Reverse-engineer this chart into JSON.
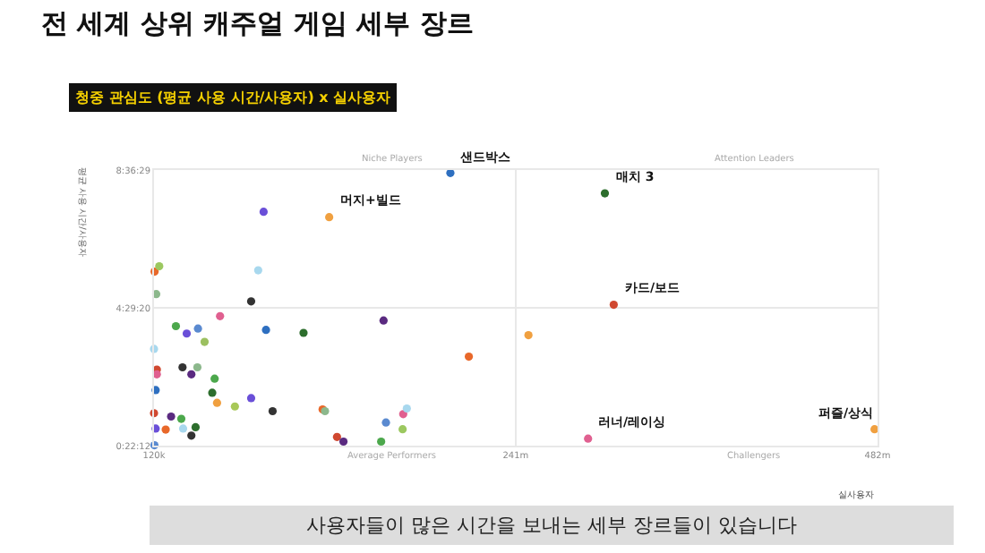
{
  "chart_data": {
    "type": "scatter",
    "title": "전 세계 상위 캐주얼 게임 세부 장르",
    "subtitle": "청중 관심도 (평균 사용 시간/사용자) x 실사용자",
    "xlabel": "실사용자",
    "ylabel": "평균 사용 시간/사용자",
    "xlim": [
      120000,
      482000000
    ],
    "xticks": [
      {
        "value": 120000,
        "label": "120k"
      },
      {
        "value": 241000000,
        "label": "241m"
      },
      {
        "value": 482000000,
        "label": "482m"
      }
    ],
    "ylim": [
      0.37,
      8.608
    ],
    "yticks": [
      {
        "value": 0.37,
        "label": "0:22:12"
      },
      {
        "value": 4.489,
        "label": "4:29:20"
      },
      {
        "value": 8.608,
        "label": "8:36:29"
      }
    ],
    "grid": true,
    "marker": "circle",
    "x": [
      197500000,
      73100000,
      116800000,
      500000,
      3600000,
      69500000,
      1600000,
      64800000,
      44100000,
      14700000,
      21900000,
      29400000,
      74700000,
      99700000,
      153000000,
      33800000,
      120000,
      19100000,
      29000000,
      2000000,
      2000000,
      25000000,
      40500000,
      1200000,
      38900000,
      42100000,
      64800000,
      54000000,
      79100000,
      112400000,
      114000000,
      120000,
      11500000,
      18300000,
      1200000,
      19500000,
      27800000,
      7900000,
      25000000,
      122000000,
      126300000,
      151400000,
      154600000,
      165700000,
      166100000,
      168500000,
      209800000,
      400000,
      249500000,
      300400000,
      306300000,
      289200000,
      480000000
    ],
    "values": [
      8.52,
      7.36,
      7.2,
      5.57,
      5.73,
      5.61,
      4.9,
      4.68,
      4.24,
      3.94,
      3.72,
      3.87,
      3.83,
      3.74,
      4.11,
      3.47,
      3.26,
      2.71,
      2.71,
      2.64,
      2.5,
      2.5,
      2.37,
      2.03,
      1.95,
      1.65,
      1.79,
      1.54,
      1.4,
      1.45,
      1.4,
      1.34,
      1.24,
      1.17,
      0.88,
      0.88,
      0.92,
      0.85,
      0.67,
      0.63,
      0.49,
      0.49,
      1.06,
      0.86,
      1.31,
      1.48,
      3.03,
      0.38,
      3.67,
      7.91,
      4.58,
      0.58,
      0.86
    ],
    "colors": [
      "#2e6fc0",
      "#6a4fd8",
      "#f0a040",
      "#e8682a",
      "#9cc860",
      "#a8d8ee",
      "#8cb88c",
      "#333333",
      "#e06090",
      "#4ca84c",
      "#6a4fd8",
      "#5a8ad0",
      "#2e6fc0",
      "#2d6e2d",
      "#5a2a80",
      "#9cc060",
      "#a8d8ee",
      "#333333",
      "#8cb88c",
      "#d04830",
      "#e06090",
      "#5a2a80",
      "#4ca84c",
      "#2e6fc0",
      "#2d6e2d",
      "#f0a040",
      "#6a4fd8",
      "#a8c858",
      "#333333",
      "#e8682a",
      "#8cb88c",
      "#d04830",
      "#5a2a80",
      "#4ca84c",
      "#6a4fd8",
      "#a8d8ee",
      "#2d6e2d",
      "#e8682a",
      "#333333",
      "#d04830",
      "#5a2a80",
      "#4ca84c",
      "#5a8ad0",
      "#9cc860",
      "#e06090",
      "#a8d8ee",
      "#e8682a",
      "#5a8ad0",
      "#f0a040",
      "#2d6e2d",
      "#d04830",
      "#e06090",
      "#f0a040"
    ],
    "annotations": [
      {
        "text": "샌드박스",
        "x": 197500000,
        "y": 8.52
      },
      {
        "text": "머지+빌드",
        "x": 116800000,
        "y": 7.2
      },
      {
        "text": "매치 3",
        "x": 300400000,
        "y": 7.91
      },
      {
        "text": "카드/보드",
        "x": 306300000,
        "y": 4.58
      },
      {
        "text": "러너/레이싱",
        "x": 289200000,
        "y": 0.58
      },
      {
        "text": "퍼즐/상식",
        "x": 480000000,
        "y": 0.86
      },
      "Niche Players",
      "Attention Leaders",
      "Average Performers",
      "Challengers",
      "사용자들이 많은 시간을 보내는 세부 장르들이 있습니다"
    ]
  }
}
